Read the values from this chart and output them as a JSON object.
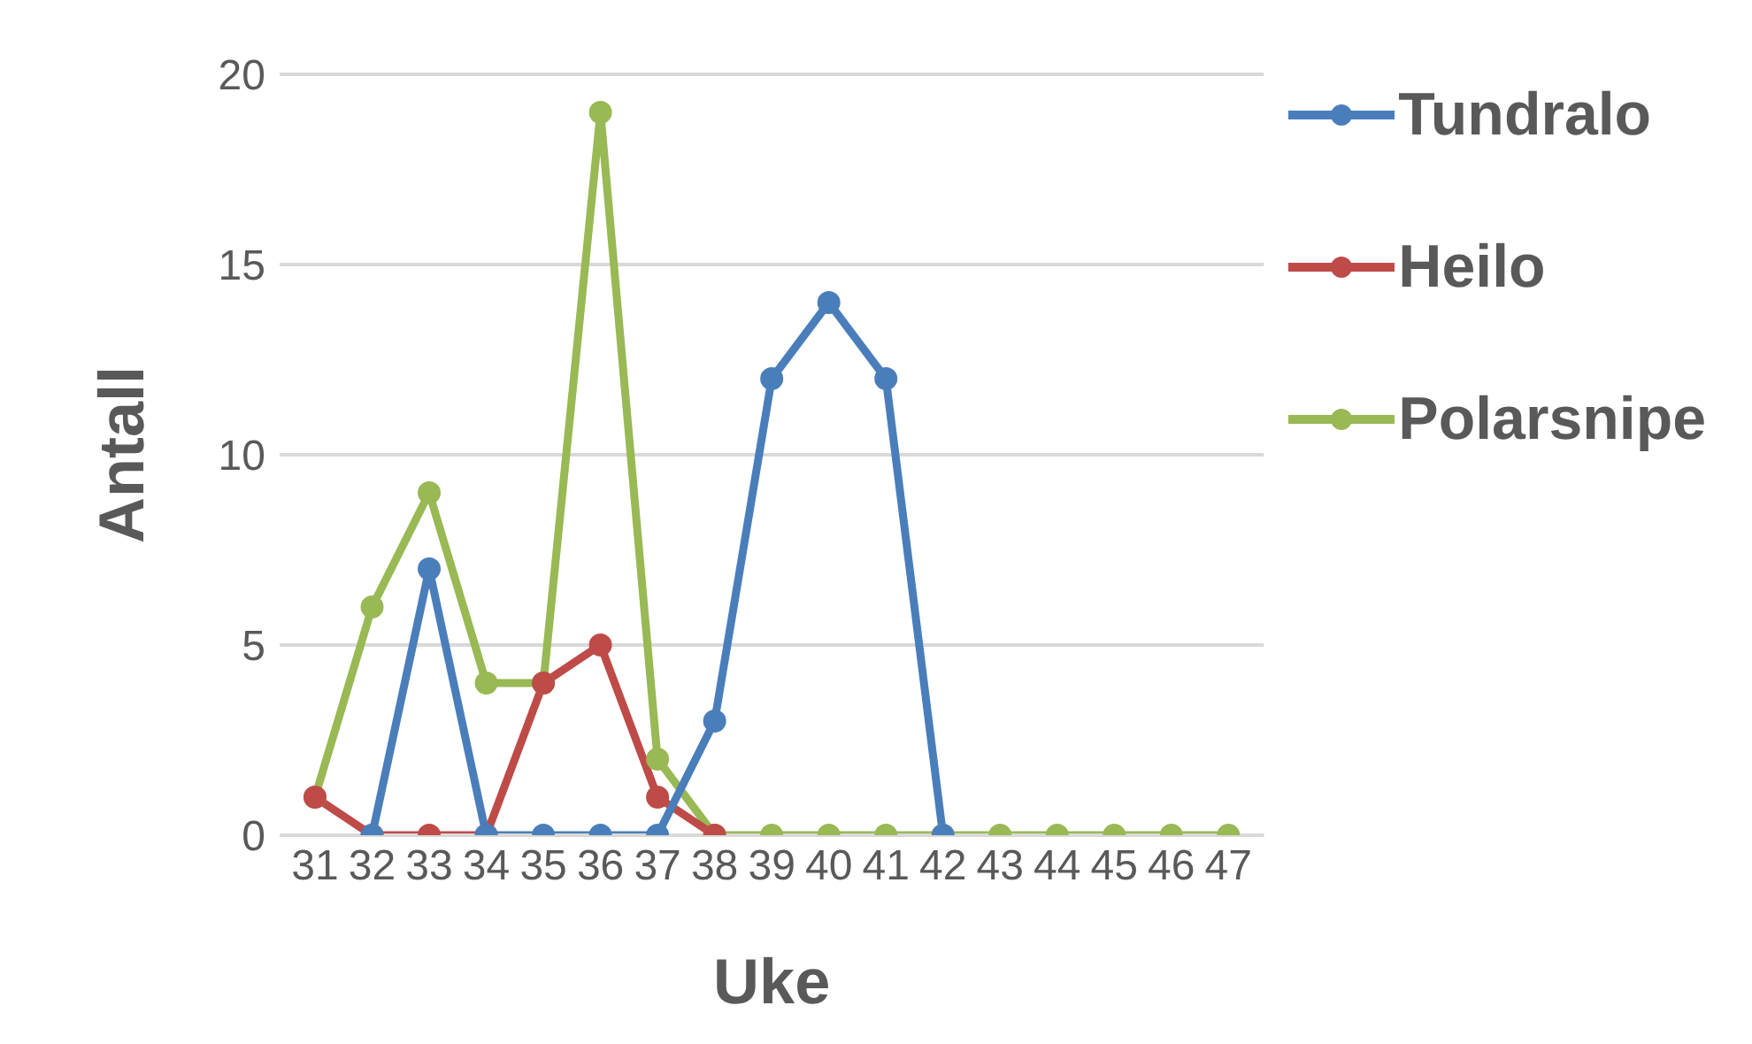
{
  "chart_data": {
    "type": "line",
    "xlabel": "Uke",
    "ylabel": "Antall",
    "categories": [
      "31",
      "32",
      "33",
      "34",
      "35",
      "36",
      "37",
      "38",
      "39",
      "40",
      "41",
      "42",
      "43",
      "44",
      "45",
      "46",
      "47"
    ],
    "series": [
      {
        "name": "Tundralo",
        "color": "#4a7ebb",
        "values": [
          null,
          0,
          7,
          0,
          0,
          0,
          0,
          3,
          12,
          14,
          12,
          0,
          null,
          null,
          null,
          null,
          null
        ]
      },
      {
        "name": "Heilo",
        "color": "#be4b48",
        "values": [
          1,
          0,
          0,
          0,
          4,
          5,
          1,
          0,
          null,
          null,
          null,
          null,
          null,
          null,
          null,
          null,
          null
        ]
      },
      {
        "name": "Polarsnipe",
        "color": "#98b954",
        "values": [
          1,
          6,
          9,
          4,
          4,
          19,
          2,
          0,
          0,
          0,
          0,
          0,
          0,
          0,
          0,
          0,
          0
        ]
      }
    ],
    "ylim": [
      0,
      20
    ],
    "yticks": [
      0,
      5,
      10,
      15,
      20
    ],
    "grid": "y",
    "legend": "top right",
    "marker": "circle",
    "line_style": "solid"
  }
}
